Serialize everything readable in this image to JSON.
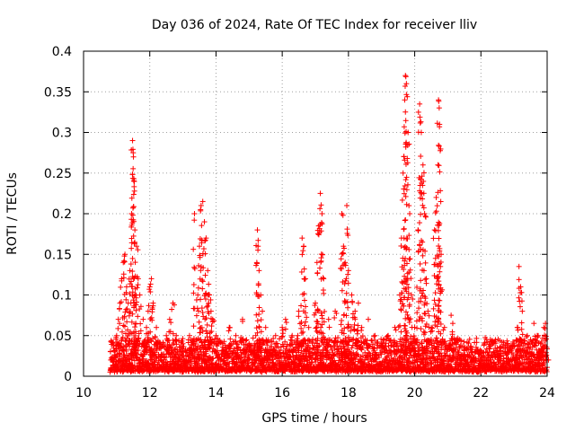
{
  "chart_data": {
    "type": "scatter",
    "title": "Day 036 of 2024, Rate Of TEC Index for receiver lliv",
    "xlabel": "GPS time / hours",
    "ylabel": "ROTI / TECUs",
    "xlim": [
      10,
      24
    ],
    "ylim": [
      0,
      0.4
    ],
    "x_ticks": [
      10,
      12,
      14,
      16,
      18,
      20,
      22,
      24
    ],
    "x_tick_labels": [
      "10",
      "12",
      "14",
      "16",
      "18",
      "20",
      "22",
      "24"
    ],
    "y_ticks": [
      0,
      0.05,
      0.1,
      0.15,
      0.2,
      0.25,
      0.3,
      0.35,
      0.4
    ],
    "y_tick_labels": [
      "0",
      "0.05",
      "0.1",
      "0.15",
      "0.2",
      "0.25",
      "0.3",
      "0.35",
      "0.4"
    ],
    "grid": true,
    "marker": "+",
    "marker_color": "#ff0000",
    "series": [
      {
        "name": "ROTI",
        "points": [
          [
            10.85,
            0.02
          ],
          [
            10.9,
            0.04
          ],
          [
            10.95,
            0.03
          ],
          [
            11.0,
            0.05
          ],
          [
            11.05,
            0.07
          ],
          [
            11.1,
            0.09
          ],
          [
            11.15,
            0.12
          ],
          [
            11.2,
            0.14
          ],
          [
            11.25,
            0.15
          ],
          [
            11.3,
            0.11
          ],
          [
            11.35,
            0.09
          ],
          [
            11.4,
            0.13
          ],
          [
            11.45,
            0.2
          ],
          [
            11.48,
            0.29
          ],
          [
            11.5,
            0.275
          ],
          [
            11.52,
            0.243
          ],
          [
            11.55,
            0.18
          ],
          [
            11.6,
            0.16
          ],
          [
            11.65,
            0.12
          ],
          [
            11.7,
            0.1
          ],
          [
            11.8,
            0.07
          ],
          [
            11.9,
            0.06
          ],
          [
            11.95,
            0.08
          ],
          [
            12.0,
            0.11
          ],
          [
            12.05,
            0.12
          ],
          [
            12.1,
            0.09
          ],
          [
            12.2,
            0.06
          ],
          [
            12.3,
            0.04
          ],
          [
            12.5,
            0.05
          ],
          [
            12.6,
            0.07
          ],
          [
            12.7,
            0.09
          ],
          [
            12.8,
            0.05
          ],
          [
            13.0,
            0.04
          ],
          [
            13.2,
            0.05
          ],
          [
            13.35,
            0.2
          ],
          [
            13.45,
            0.1
          ],
          [
            13.5,
            0.16
          ],
          [
            13.55,
            0.21
          ],
          [
            13.6,
            0.215
          ],
          [
            13.65,
            0.19
          ],
          [
            13.7,
            0.17
          ],
          [
            13.75,
            0.13
          ],
          [
            13.8,
            0.1
          ],
          [
            13.85,
            0.08
          ],
          [
            13.9,
            0.07
          ],
          [
            14.0,
            0.05
          ],
          [
            14.2,
            0.04
          ],
          [
            14.4,
            0.06
          ],
          [
            14.6,
            0.05
          ],
          [
            14.8,
            0.07
          ],
          [
            15.0,
            0.04
          ],
          [
            15.2,
            0.05
          ],
          [
            15.25,
            0.18
          ],
          [
            15.27,
            0.16
          ],
          [
            15.3,
            0.13
          ],
          [
            15.35,
            0.1
          ],
          [
            15.4,
            0.08
          ],
          [
            15.5,
            0.06
          ],
          [
            15.8,
            0.05
          ],
          [
            16.0,
            0.06
          ],
          [
            16.1,
            0.07
          ],
          [
            16.3,
            0.05
          ],
          [
            16.5,
            0.08
          ],
          [
            16.6,
            0.17
          ],
          [
            16.65,
            0.16
          ],
          [
            16.7,
            0.12
          ],
          [
            16.8,
            0.06
          ],
          [
            17.0,
            0.09
          ],
          [
            17.05,
            0.14
          ],
          [
            17.1,
            0.185
          ],
          [
            17.15,
            0.225
          ],
          [
            17.2,
            0.2
          ],
          [
            17.25,
            0.12
          ],
          [
            17.4,
            0.07
          ],
          [
            17.6,
            0.08
          ],
          [
            17.8,
            0.2
          ],
          [
            17.85,
            0.16
          ],
          [
            17.9,
            0.14
          ],
          [
            17.95,
            0.21
          ],
          [
            18.0,
            0.13
          ],
          [
            18.1,
            0.1
          ],
          [
            18.2,
            0.08
          ],
          [
            18.3,
            0.09
          ],
          [
            18.4,
            0.06
          ],
          [
            18.6,
            0.07
          ],
          [
            18.8,
            0.05
          ],
          [
            19.0,
            0.04
          ],
          [
            19.2,
            0.05
          ],
          [
            19.4,
            0.06
          ],
          [
            19.55,
            0.1
          ],
          [
            19.6,
            0.17
          ],
          [
            19.65,
            0.25
          ],
          [
            19.7,
            0.34
          ],
          [
            19.72,
            0.37
          ],
          [
            19.75,
            0.36
          ],
          [
            19.8,
            0.3
          ],
          [
            19.85,
            0.2
          ],
          [
            19.9,
            0.1
          ],
          [
            20.0,
            0.06
          ],
          [
            20.1,
            0.18
          ],
          [
            20.15,
            0.335
          ],
          [
            20.2,
            0.3
          ],
          [
            20.25,
            0.26
          ],
          [
            20.3,
            0.2
          ],
          [
            20.35,
            0.12
          ],
          [
            20.4,
            0.08
          ],
          [
            20.5,
            0.06
          ],
          [
            20.6,
            0.18
          ],
          [
            20.65,
            0.22
          ],
          [
            20.7,
            0.26
          ],
          [
            20.72,
            0.34
          ],
          [
            20.75,
            0.31
          ],
          [
            20.8,
            0.15
          ],
          [
            20.9,
            0.06
          ],
          [
            21.1,
            0.075
          ],
          [
            21.15,
            0.065
          ],
          [
            21.3,
            0.03
          ],
          [
            21.5,
            0.025
          ],
          [
            21.8,
            0.02
          ],
          [
            22.0,
            0.03
          ],
          [
            22.3,
            0.02
          ],
          [
            22.6,
            0.025
          ],
          [
            22.8,
            0.03
          ],
          [
            23.0,
            0.04
          ],
          [
            23.1,
            0.06
          ],
          [
            23.15,
            0.135
          ],
          [
            23.2,
            0.11
          ],
          [
            23.25,
            0.08
          ],
          [
            23.4,
            0.05
          ],
          [
            23.5,
            0.045
          ],
          [
            23.6,
            0.065
          ],
          [
            23.7,
            0.05
          ],
          [
            23.8,
            0.04
          ],
          [
            23.9,
            0.06
          ],
          [
            23.95,
            0.065
          ],
          [
            24.0,
            0.02
          ]
        ],
        "dense_baseline": {
          "x_range": [
            10.8,
            24.0
          ],
          "typical_y_range": [
            0.005,
            0.045
          ]
        }
      }
    ]
  }
}
